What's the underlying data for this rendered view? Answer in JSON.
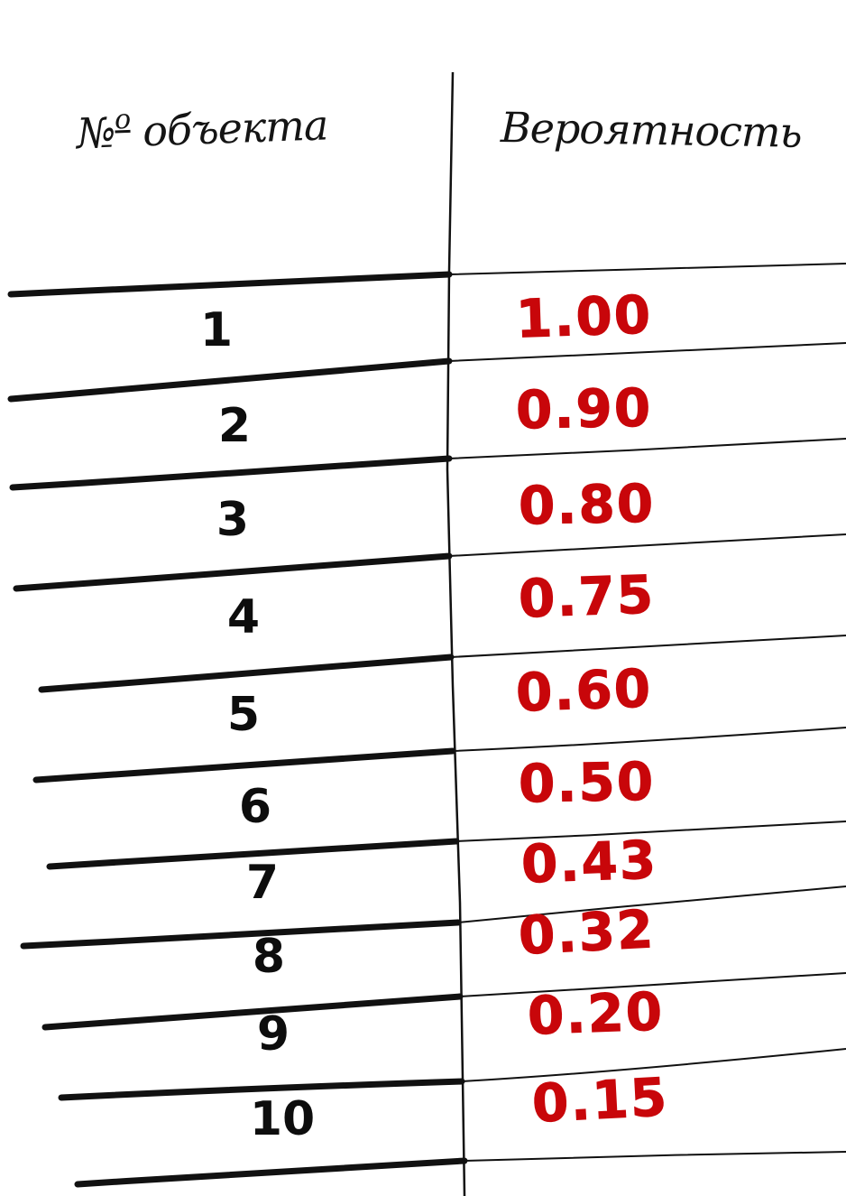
{
  "table": {
    "headers": {
      "object_no": "№ объекта",
      "object_no_mark": "№",
      "object_no_sup": "о",
      "object_no_word": "объекта",
      "probability": "Вероятность"
    },
    "rows": [
      {
        "object": "1",
        "probability": "1.00"
      },
      {
        "object": "2",
        "probability": "0.90"
      },
      {
        "object": "3",
        "probability": "0.80"
      },
      {
        "object": "4",
        "probability": "0.75"
      },
      {
        "object": "5",
        "probability": "0.60"
      },
      {
        "object": "6",
        "probability": "0.50"
      },
      {
        "object": "7",
        "probability": "0.43"
      },
      {
        "object": "8",
        "probability": "0.32"
      },
      {
        "object": "9",
        "probability": "0.20"
      },
      {
        "object": "10",
        "probability": "0.15"
      }
    ]
  },
  "colors": {
    "ink": "#0d0d0d",
    "probability_ink": "#c8060a",
    "paper": "#ffffff"
  }
}
